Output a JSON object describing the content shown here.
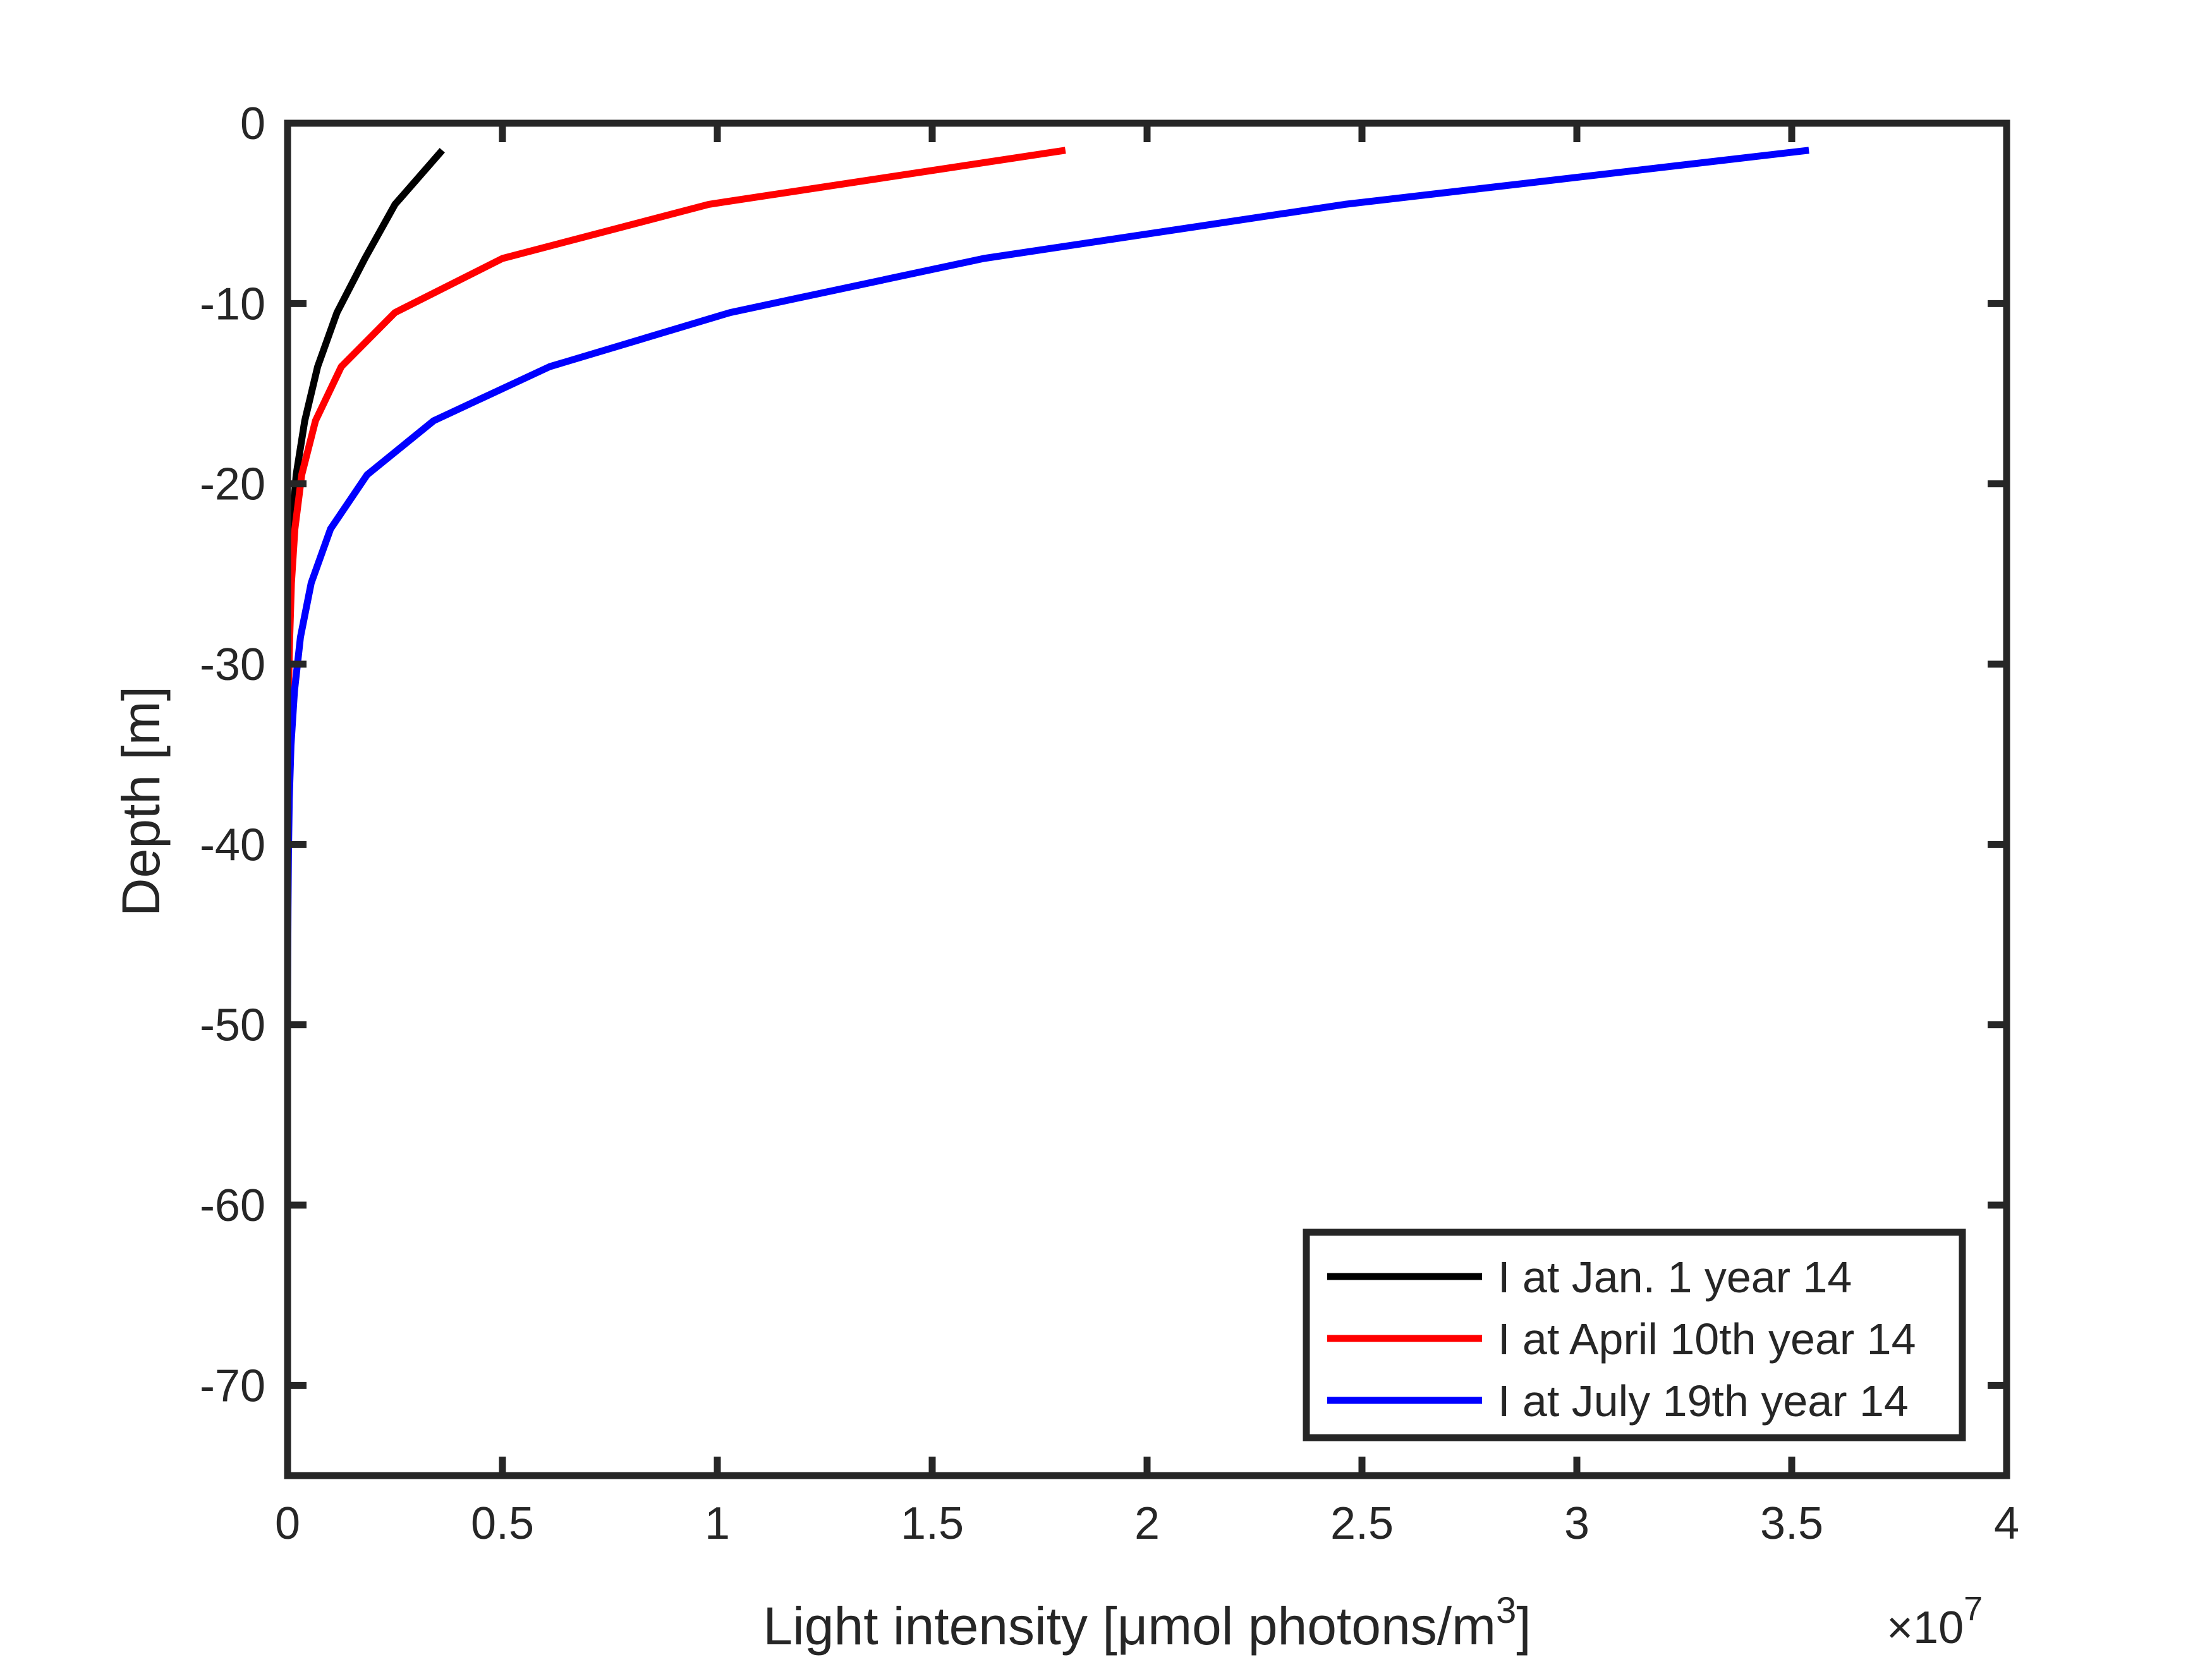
{
  "chart_data": {
    "type": "line",
    "xlabel": "Light intensity [μmol photons/m",
    "xlabel_superscript": "3",
    "xlabel_suffix": "]",
    "ylabel": "Depth [m]",
    "x_exponent_base": "×10",
    "x_exponent_power": "7",
    "xlim": [
      0,
      4
    ],
    "ylim": [
      -75,
      0
    ],
    "xticks": [
      0,
      0.5,
      1,
      1.5,
      2,
      2.5,
      3,
      3.5,
      4
    ],
    "xtick_labels": [
      "0",
      "0.5",
      "1",
      "1.5",
      "2",
      "2.5",
      "3",
      "3.5",
      "4"
    ],
    "yticks": [
      0,
      -10,
      -20,
      -30,
      -40,
      -50,
      -60,
      -70
    ],
    "ytick_labels": [
      "0",
      "-10",
      "-20",
      "-30",
      "-40",
      "-50",
      "-60",
      "-70"
    ],
    "grid": false,
    "legend_position": "bottom-right",
    "series": [
      {
        "name": "I at Jan. 1 year 14",
        "color": "#000000",
        "x": [
          0.36,
          0.25,
          0.18,
          0.115,
          0.07,
          0.04,
          0.02,
          0.01,
          0.005,
          0.002,
          0.001,
          0.0005,
          0,
          0,
          0,
          0,
          0,
          0,
          0,
          0,
          0,
          0,
          0,
          0,
          0,
          0
        ],
        "y": [
          -1.5,
          -4.5,
          -7.5,
          -10.5,
          -13.5,
          -16.5,
          -19.5,
          -22.5,
          -25.5,
          -28.5,
          -31.5,
          -34.5,
          -37.5,
          -40.5,
          -43.5,
          -46.5,
          -49.5,
          -52.5,
          -55.5,
          -58.5,
          -61.5,
          -64.5,
          -67.5,
          -70.5,
          -73.5,
          -75
        ]
      },
      {
        "name": "I at April 10th year 14",
        "color": "#ff0000",
        "x": [
          1.81,
          0.98,
          0.5,
          0.25,
          0.125,
          0.065,
          0.033,
          0.017,
          0.009,
          0.005,
          0.002,
          0.001,
          0.0005,
          0,
          0,
          0,
          0,
          0,
          0,
          0,
          0,
          0,
          0,
          0,
          0,
          0
        ],
        "y": [
          -1.5,
          -4.5,
          -7.5,
          -10.5,
          -13.5,
          -16.5,
          -19.5,
          -22.5,
          -25.5,
          -28.5,
          -31.5,
          -34.5,
          -37.5,
          -40.5,
          -43.5,
          -46.5,
          -49.5,
          -52.5,
          -55.5,
          -58.5,
          -61.5,
          -64.5,
          -67.5,
          -70.5,
          -73.5,
          -75
        ]
      },
      {
        "name": "I at July 19th year 14",
        "color": "#0000ff",
        "x": [
          3.54,
          2.46,
          1.62,
          1.03,
          0.61,
          0.34,
          0.185,
          0.1,
          0.055,
          0.03,
          0.016,
          0.008,
          0.004,
          0.002,
          0.001,
          0.0005,
          0,
          0,
          0,
          0,
          0,
          0,
          0,
          0,
          0,
          0
        ],
        "y": [
          -1.5,
          -4.5,
          -7.5,
          -10.5,
          -13.5,
          -16.5,
          -19.5,
          -22.5,
          -25.5,
          -28.5,
          -31.5,
          -34.5,
          -37.5,
          -40.5,
          -43.5,
          -46.5,
          -49.5,
          -52.5,
          -55.5,
          -58.5,
          -61.5,
          -64.5,
          -67.5,
          -70.5,
          -73.5,
          -75
        ]
      }
    ]
  }
}
